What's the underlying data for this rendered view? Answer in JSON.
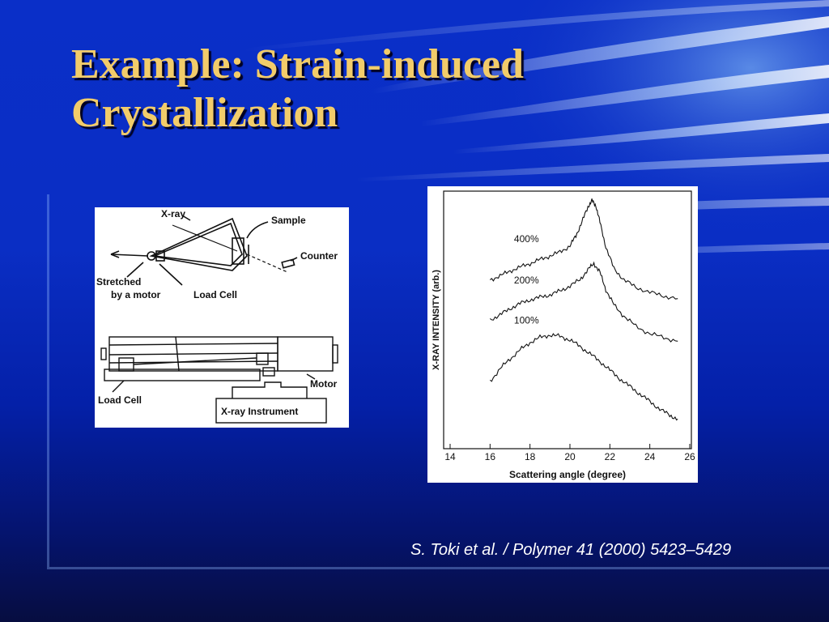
{
  "slide": {
    "title_line1": "Example: Strain-induced",
    "title_line2": "Crystallization",
    "citation": "S. Toki et al. / Polymer 41 (2000) 5423–5429",
    "title_color": "#f2cc6a",
    "background_color": "#0a2ec4"
  },
  "diagram": {
    "labels": {
      "xray": "X-ray",
      "sample": "Sample",
      "counter": "Counter",
      "stretched_line1": "Stretched",
      "stretched_line2": "by a motor",
      "load_cell_top": "Load Cell",
      "motor": "Motor",
      "load_cell_bottom": "Load Cell",
      "xray_instrument": "X-ray Instrument"
    }
  },
  "chart_data": {
    "type": "line",
    "xlabel": "Scattering angle (degree)",
    "ylabel": "X-RAY INTENSITY (arb.)",
    "xlim": [
      14,
      26
    ],
    "ylim": [
      0,
      10
    ],
    "xticks": [
      14,
      16,
      18,
      20,
      22,
      24,
      26
    ],
    "grid": false,
    "legend": "none",
    "series": [
      {
        "name": "400%",
        "label_at": [
          17.2,
          8.1
        ],
        "x": [
          16,
          16.5,
          17,
          17.5,
          18,
          18.5,
          19,
          19.5,
          20,
          20.3,
          20.6,
          20.9,
          21.1,
          21.3,
          21.5,
          21.8,
          22.2,
          22.7,
          23.3,
          24,
          24.7,
          25.4
        ],
        "y": [
          6.6,
          6.75,
          6.95,
          7.1,
          7.25,
          7.4,
          7.55,
          7.7,
          7.95,
          8.35,
          8.9,
          9.5,
          9.75,
          9.55,
          8.9,
          7.9,
          7.05,
          6.6,
          6.3,
          6.1,
          5.95,
          5.85
        ]
      },
      {
        "name": "200%",
        "label_at": [
          17.2,
          6.45
        ],
        "x": [
          16,
          16.5,
          17,
          17.5,
          18,
          18.5,
          19,
          19.5,
          20,
          20.5,
          20.9,
          21.2,
          21.5,
          21.8,
          22.2,
          22.7,
          23.3,
          24,
          24.7,
          25.4
        ],
        "y": [
          5.0,
          5.2,
          5.45,
          5.65,
          5.8,
          5.9,
          6.0,
          6.15,
          6.35,
          6.6,
          7.0,
          7.25,
          6.9,
          6.2,
          5.6,
          5.15,
          4.75,
          4.45,
          4.3,
          4.15
        ]
      },
      {
        "name": "100%",
        "label_at": [
          17.2,
          4.85
        ],
        "x": [
          16,
          16.5,
          17,
          17.5,
          18,
          18.5,
          19,
          19.5,
          20,
          20.5,
          21,
          21.5,
          22,
          22.5,
          23,
          23.5,
          24,
          24.5,
          25,
          25.4
        ],
        "y": [
          2.55,
          3.05,
          3.45,
          3.8,
          4.1,
          4.3,
          4.4,
          4.35,
          4.2,
          3.95,
          3.65,
          3.35,
          3.0,
          2.65,
          2.35,
          2.05,
          1.75,
          1.45,
          1.2,
          1.05
        ]
      }
    ]
  }
}
